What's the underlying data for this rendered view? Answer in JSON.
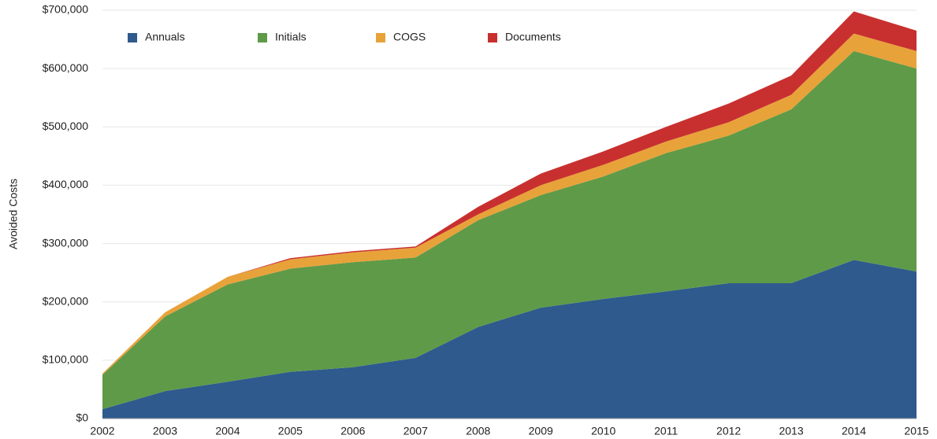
{
  "chart_data": {
    "type": "stacked_area",
    "y_label": "Avoided Costs",
    "x": [
      2002,
      2003,
      2004,
      2005,
      2006,
      2007,
      2008,
      2009,
      2010,
      2011,
      2012,
      2013,
      2014,
      2015
    ],
    "xlim": [
      2002,
      2015
    ],
    "xticks": [
      2002,
      2003,
      2004,
      2005,
      2006,
      2007,
      2008,
      2009,
      2010,
      2011,
      2012,
      2013,
      2014,
      2015
    ],
    "ylim": [
      0,
      700000
    ],
    "yticks": [
      {
        "value": 0,
        "label": "$0"
      },
      {
        "value": 100000,
        "label": "$100,000"
      },
      {
        "value": 200000,
        "label": "$200,000"
      },
      {
        "value": 300000,
        "label": "$300,000"
      },
      {
        "value": 400000,
        "label": "$400,000"
      },
      {
        "value": 500000,
        "label": "$500,000"
      },
      {
        "value": 600000,
        "label": "$600,000"
      },
      {
        "value": 700000,
        "label": "$700,000"
      }
    ],
    "grid": true,
    "legend": "top-left",
    "series": [
      {
        "name": "Annuals",
        "color": "#2e5a8e",
        "values": [
          16000,
          47000,
          63000,
          80000,
          88000,
          104000,
          157000,
          190000,
          205000,
          218000,
          232000,
          232000,
          272000,
          252000
        ]
      },
      {
        "name": "Initials",
        "color": "#5f9a48",
        "values": [
          59000,
          128000,
          167000,
          177000,
          180000,
          172000,
          183000,
          193000,
          210000,
          237000,
          253000,
          298000,
          358000,
          348000
        ]
      },
      {
        "name": "COGS",
        "color": "#e8a23a",
        "values": [
          2000,
          7000,
          13000,
          16000,
          17000,
          17000,
          10000,
          17000,
          20000,
          20000,
          23000,
          25000,
          30000,
          30000
        ]
      },
      {
        "name": "Documents",
        "color": "#c8302f",
        "values": [
          0,
          0,
          0,
          2000,
          2000,
          2000,
          13000,
          20000,
          23000,
          25000,
          32000,
          33000,
          38000,
          35000
        ]
      }
    ]
  }
}
